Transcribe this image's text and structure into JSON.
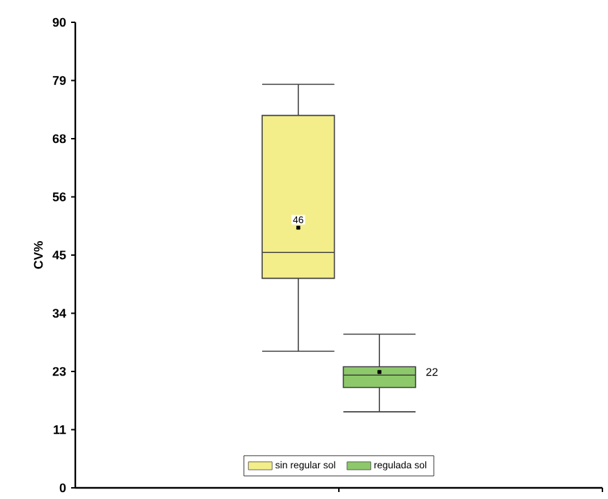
{
  "chart_data": {
    "type": "box",
    "ylabel": "CV%",
    "categories": [
      null
    ],
    "series": [
      {
        "name": "sin regular sol",
        "color": "#f4ee8a",
        "boxes": [
          {
            "low": 26.4,
            "q1": 40.5,
            "median": 45.5,
            "q3": 72.0,
            "high": 78.0,
            "mean": 50.3
          }
        ]
      },
      {
        "name": "regulada sol",
        "color": "#8dc86a",
        "boxes": [
          {
            "low": 14.7,
            "q1": 19.4,
            "median": 21.8,
            "q3": 23.4,
            "high": 29.7,
            "mean": 22.4
          }
        ]
      }
    ],
    "ylim": [
      0,
      90
    ],
    "yticks": [
      0,
      {
        "value": 11.25,
        "label": "11"
      },
      {
        "value": 22.5,
        "label": "23"
      },
      {
        "value": 33.75,
        "label": "34"
      },
      45,
      {
        "value": 56.25,
        "label": "56"
      },
      {
        "value": 67.5,
        "label": "68"
      },
      {
        "value": 78.75,
        "label": "79"
      },
      90
    ],
    "annotations": [
      "46",
      "22"
    ],
    "legend": "bottom",
    "grid": false
  }
}
